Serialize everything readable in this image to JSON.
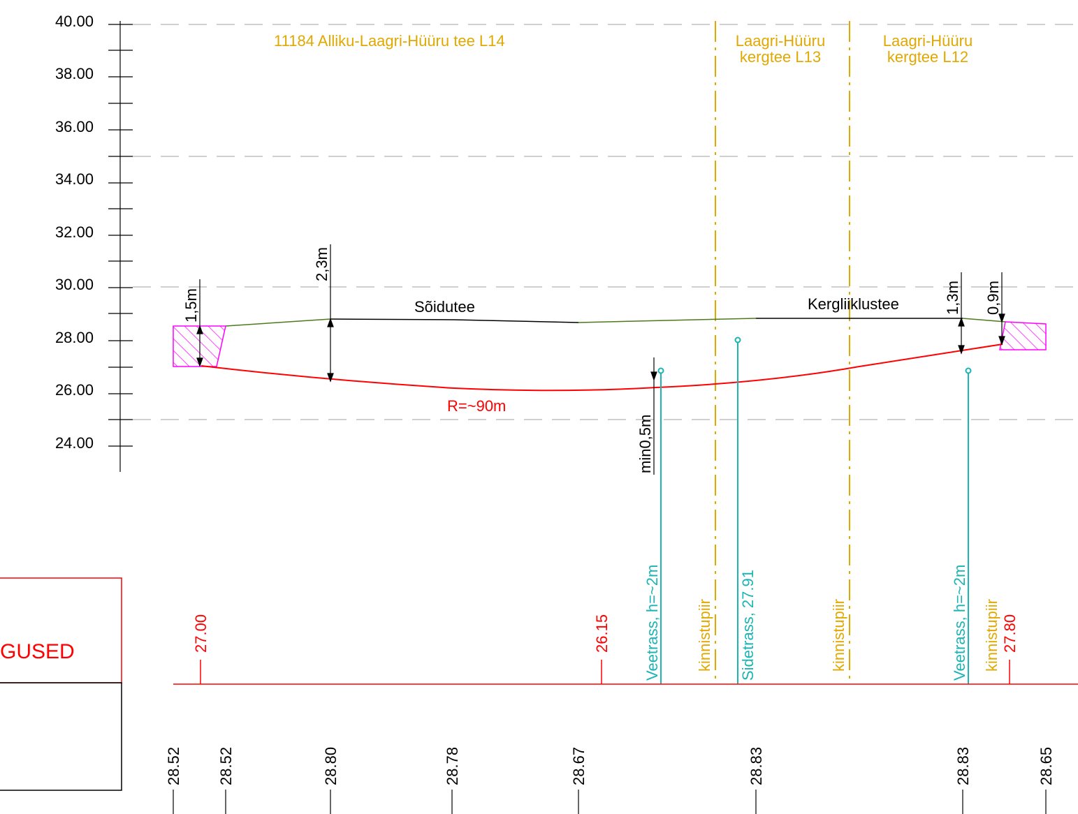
{
  "colors": {
    "orange": "#e0a800",
    "red": "#ff0000",
    "teal": "#1ab4b4",
    "green": "#4a7a1a",
    "magenta": "#ff00ff",
    "black": "#000000",
    "grey": "#a0a0a0"
  },
  "axis": {
    "ticks": [
      "40.00",
      "38.00",
      "36.00",
      "34.00",
      "32.00",
      "30.00",
      "28.00",
      "26.00",
      "24.00"
    ]
  },
  "section_titles": {
    "main_road": "11184 Alliku-Laagri-Hüüru tee L14",
    "l13_line1": "Laagri-Hüüru",
    "l13_line2": "kergtee L13",
    "l12_line1": "Laagri-Hüüru",
    "l12_line2": "kergtee L12"
  },
  "road_labels": {
    "carriageway": "Sõidutee",
    "cycleway": "Kergliiklustee",
    "radius": "R=~90m"
  },
  "dimensions": {
    "d1": "1,5m",
    "d2": "2,3m",
    "d3": "1,3m",
    "d4": "0,9m",
    "min_cover": "min0,5m"
  },
  "vertical_labels": {
    "elev_27_00": "27.00",
    "elev_26_15": "26.15",
    "veetrass_1": "Veetrass, h=~2m",
    "kinnistupiir_1": "kinnistupiir",
    "sidetrass": "Sidetrass, 27.91",
    "kinnistupiir_2": "kinnistupiir",
    "veetrass_2": "Veetrass, h=~2m",
    "kinnistupiir_3": "kinnistupiir",
    "elev_27_80": "27.80"
  },
  "legend_box": {
    "text": "GUSED"
  },
  "bottom_values": [
    "28.52",
    "28.52",
    "28.80",
    "28.78",
    "28.67",
    "28.83",
    "28.83",
    "28.65"
  ]
}
